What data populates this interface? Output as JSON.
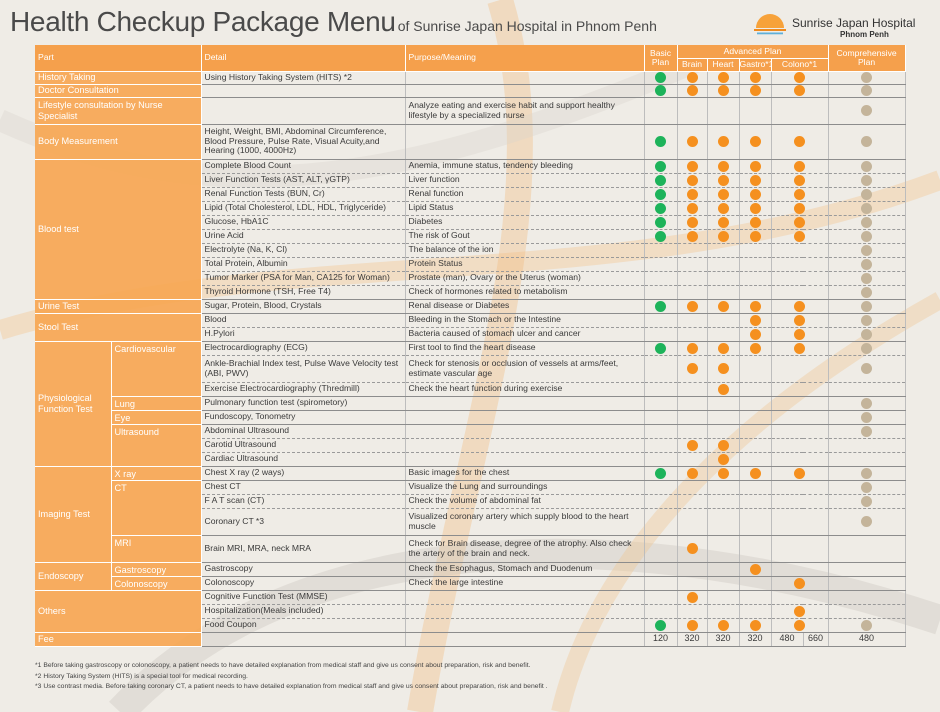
{
  "title": "Health Checkup Package Menu",
  "subtitle": "of Sunrise Japan Hospital in Phnom Penh",
  "logo": {
    "name": "Sunrise Japan Hospital",
    "city": "Phnom Penh"
  },
  "colors": {
    "basic": "#1db35a",
    "advanced": "#f5901f",
    "comprehensive": "#c4b49a",
    "header": "#f5a04c"
  },
  "header": {
    "part": "Part",
    "detail": "Detail",
    "purpose": "Purpose/Meaning",
    "basic": "Basic Plan",
    "advanced": "Advanced Plan",
    "comprehensive": "Comprehensive Plan",
    "brain": "Brain",
    "heart": "Heart",
    "gastro": "Gastro*1",
    "colono": "Colono*1"
  },
  "rows": [
    {
      "p1": "History Taking",
      "p2": "",
      "detail": "Using History Taking System (HITS) *2",
      "purpose": "",
      "m": [
        "g",
        "o",
        "o",
        "o",
        "o",
        "c"
      ]
    },
    {
      "p1": "Doctor Consultation",
      "p2": "",
      "detail": "",
      "purpose": "",
      "m": [
        "g",
        "o",
        "o",
        "o",
        "o",
        "c"
      ]
    },
    {
      "p1": "Lifestyle consultation by Nurse Specialist",
      "p2": "",
      "detail": "",
      "purpose": "Analyze eating and exercise habit and support  healthy lifestyle by a specialized nurse",
      "m": [
        "",
        "",
        "",
        "",
        "",
        "c"
      ]
    },
    {
      "p1": "Body Measurement",
      "p2": "",
      "detail": "Height, Weight, BMI, Abdominal Circumference, Blood Pressure, Pulse Rate, Visual Acuity,and Hearing (1000, 4000Hz)",
      "purpose": "",
      "m": [
        "g",
        "o",
        "o",
        "o",
        "o",
        "c"
      ]
    },
    {
      "p1": "Blood test",
      "p2": "",
      "detail": "Complete Blood Count",
      "purpose": "Anemia, immune status, tendency bleeding",
      "m": [
        "g",
        "o",
        "o",
        "o",
        "o",
        "c"
      ]
    },
    {
      "p1": "",
      "p2": "",
      "detail": "Liver Function Tests (AST, ALT, γGTP)",
      "purpose": "Liver function",
      "m": [
        "g",
        "o",
        "o",
        "o",
        "o",
        "c"
      ]
    },
    {
      "p1": "",
      "p2": "",
      "detail": "Renal Function Tests (BUN, Cr)",
      "purpose": "Renal function",
      "m": [
        "g",
        "o",
        "o",
        "o",
        "o",
        "c"
      ]
    },
    {
      "p1": "",
      "p2": "",
      "detail": "Lipid  (Total Cholesterol, LDL, HDL, Triglyceride)",
      "purpose": "Lipid Status",
      "m": [
        "g",
        "o",
        "o",
        "o",
        "o",
        "c"
      ]
    },
    {
      "p1": "",
      "p2": "",
      "detail": "Glucose, HbA1C",
      "purpose": "Diabetes",
      "m": [
        "g",
        "o",
        "o",
        "o",
        "o",
        "c"
      ]
    },
    {
      "p1": "",
      "p2": "",
      "detail": "Urine Acid",
      "purpose": "The risk of Gout",
      "m": [
        "g",
        "o",
        "o",
        "o",
        "o",
        "c"
      ]
    },
    {
      "p1": "",
      "p2": "",
      "detail": "Electrolyte (Na, K, Cl)",
      "purpose": "The balance of the ion",
      "m": [
        "",
        "",
        "",
        "",
        "",
        "c"
      ]
    },
    {
      "p1": "",
      "p2": "",
      "detail": "Total Protein, Albumin",
      "purpose": "Protein Status",
      "m": [
        "",
        "",
        "",
        "",
        "",
        "c"
      ]
    },
    {
      "p1": "",
      "p2": "",
      "detail": "Tumor Marker (PSA for Man, CA125 for Woman)",
      "purpose": "Prostate (man), Ovary or the Uterus (woman)",
      "m": [
        "",
        "",
        "",
        "",
        "",
        "c"
      ]
    },
    {
      "p1": "",
      "p2": "",
      "detail": "Thyroid Hormone (TSH, Free T4)",
      "purpose": "Check of hormones related to metabolism",
      "m": [
        "",
        "",
        "",
        "",
        "",
        "c"
      ]
    },
    {
      "p1": "Urine Test",
      "p2": "",
      "detail": "Sugar, Protein, Blood, Crystals",
      "purpose": "Renal disease or Diabetes",
      "m": [
        "g",
        "o",
        "o",
        "o",
        "o",
        "c"
      ]
    },
    {
      "p1": "Stool Test",
      "p2": "",
      "detail": "Blood",
      "purpose": "Bleeding in the Stomach or the Intestine",
      "m": [
        "",
        "",
        "",
        "o",
        "o",
        "c"
      ]
    },
    {
      "p1": "",
      "p2": "",
      "detail": "H.Pylori",
      "purpose": "Bacteria caused of stomach ulcer and cancer",
      "m": [
        "",
        "",
        "",
        "o",
        "o",
        "c"
      ]
    },
    {
      "p1": "Physiological Function Test",
      "p2": "Cardiovascular",
      "detail": "Electrocardiography (ECG)",
      "purpose": "First tool to find the heart disease",
      "m": [
        "g",
        "o",
        "o",
        "o",
        "o",
        "c"
      ]
    },
    {
      "p1": "",
      "p2": "",
      "detail": "Ankle-Brachial Index test, Pulse Wave Velocity test (ABI, PWV)",
      "purpose": "Check for stenosis or occlusion of vessels at arms/feet, estimate vascular age",
      "m": [
        "",
        "o",
        "o",
        "",
        "",
        "c"
      ]
    },
    {
      "p1": "",
      "p2": "",
      "detail": "Exercise Electrocardiography (Thredmill)",
      "purpose": "Check the heart function during exercise",
      "m": [
        "",
        "",
        "o",
        "",
        "",
        ""
      ]
    },
    {
      "p1": "",
      "p2": "Lung",
      "detail": "Pulmonary function test (spirometory)",
      "purpose": "",
      "m": [
        "",
        "",
        "",
        "",
        "",
        "c"
      ]
    },
    {
      "p1": "",
      "p2": "Eye",
      "detail": "Fundoscopy, Tonometry",
      "purpose": "",
      "m": [
        "",
        "",
        "",
        "",
        "",
        "c"
      ]
    },
    {
      "p1": "",
      "p2": "Ultrasound",
      "detail": "Abdominal Ultrasound",
      "purpose": "",
      "m": [
        "",
        "",
        "",
        "",
        "",
        "c"
      ]
    },
    {
      "p1": "",
      "p2": "",
      "detail": "Carotid Ultrasound",
      "purpose": "",
      "m": [
        "",
        "o",
        "o",
        "",
        "",
        ""
      ]
    },
    {
      "p1": "",
      "p2": "",
      "detail": "Cardiac Ultrasound",
      "purpose": "",
      "m": [
        "",
        "",
        "o",
        "",
        "",
        ""
      ]
    },
    {
      "p1": "Imaging Test",
      "p2": "X ray",
      "detail": "Chest X ray (2 ways)",
      "purpose": "Basic images for the chest",
      "m": [
        "g",
        "o",
        "o",
        "o",
        "o",
        "c"
      ]
    },
    {
      "p1": "",
      "p2": "CT",
      "detail": "Chest CT",
      "purpose": "Visualize the Lung and surroundings",
      "m": [
        "",
        "",
        "",
        "",
        "",
        "c"
      ]
    },
    {
      "p1": "",
      "p2": "",
      "detail": "F A T  scan (CT)",
      "purpose": "Check the volume of abdominal fat",
      "m": [
        "",
        "",
        "",
        "",
        "",
        "c"
      ]
    },
    {
      "p1": "",
      "p2": "",
      "detail": "Coronary CT *3",
      "purpose": "Visualized coronary artery which supply blood to the heart muscle",
      "m": [
        "",
        "",
        "",
        "",
        "",
        "c"
      ]
    },
    {
      "p1": "",
      "p2": "MRI",
      "detail": "Brain MRI, MRA, neck MRA",
      "purpose": "Check for Brain disease, degree of the atrophy. Also check the artery of the brain and neck.",
      "m": [
        "",
        "o",
        "",
        "",
        "",
        ""
      ]
    },
    {
      "p1": "Endoscopy",
      "p2": "Gastroscopy",
      "detail": "Gastroscopy",
      "purpose": "Check the Esophagus, Stomach and Duodenum",
      "m": [
        "",
        "",
        "",
        "o",
        "",
        ""
      ]
    },
    {
      "p1": "",
      "p2": "Colonoscopy",
      "detail": "Colonoscopy",
      "purpose": "Check the large intestine",
      "m": [
        "",
        "",
        "",
        "",
        "o",
        ""
      ]
    },
    {
      "p1": "Others",
      "p2": "",
      "detail": "Cognitive Function Test (MMSE)",
      "purpose": "",
      "m": [
        "",
        "o",
        "",
        "",
        "",
        ""
      ]
    },
    {
      "p1": "",
      "p2": "",
      "detail": "Hospitalization(Meals included)",
      "purpose": "",
      "m": [
        "",
        "",
        "",
        "",
        "o",
        ""
      ]
    },
    {
      "p1": "",
      "p2": "",
      "detail": "Food Coupon",
      "purpose": "",
      "m": [
        "g",
        "o",
        "o",
        "o",
        "o",
        "c"
      ]
    }
  ],
  "fee": {
    "label": "Fee",
    "basic": "120",
    "brain": "320",
    "heart": "320",
    "gastro": "320",
    "colono_a": "480",
    "colono_b": "660",
    "comprehensive": "480"
  },
  "notes": [
    "*1 Before taking gastroscopy or colonoscopy, a patient needs to have detailed explanation from medical staff and give us consent about preparation, risk and benefit.",
    "*2 History Taking System (HITS) is a special tool for medical recording.",
    "*3 Use contrast media. Before taking coronary CT, a patient needs to have detailed explanation from medical staff and give us consent about preparation, risk and benefit ."
  ]
}
